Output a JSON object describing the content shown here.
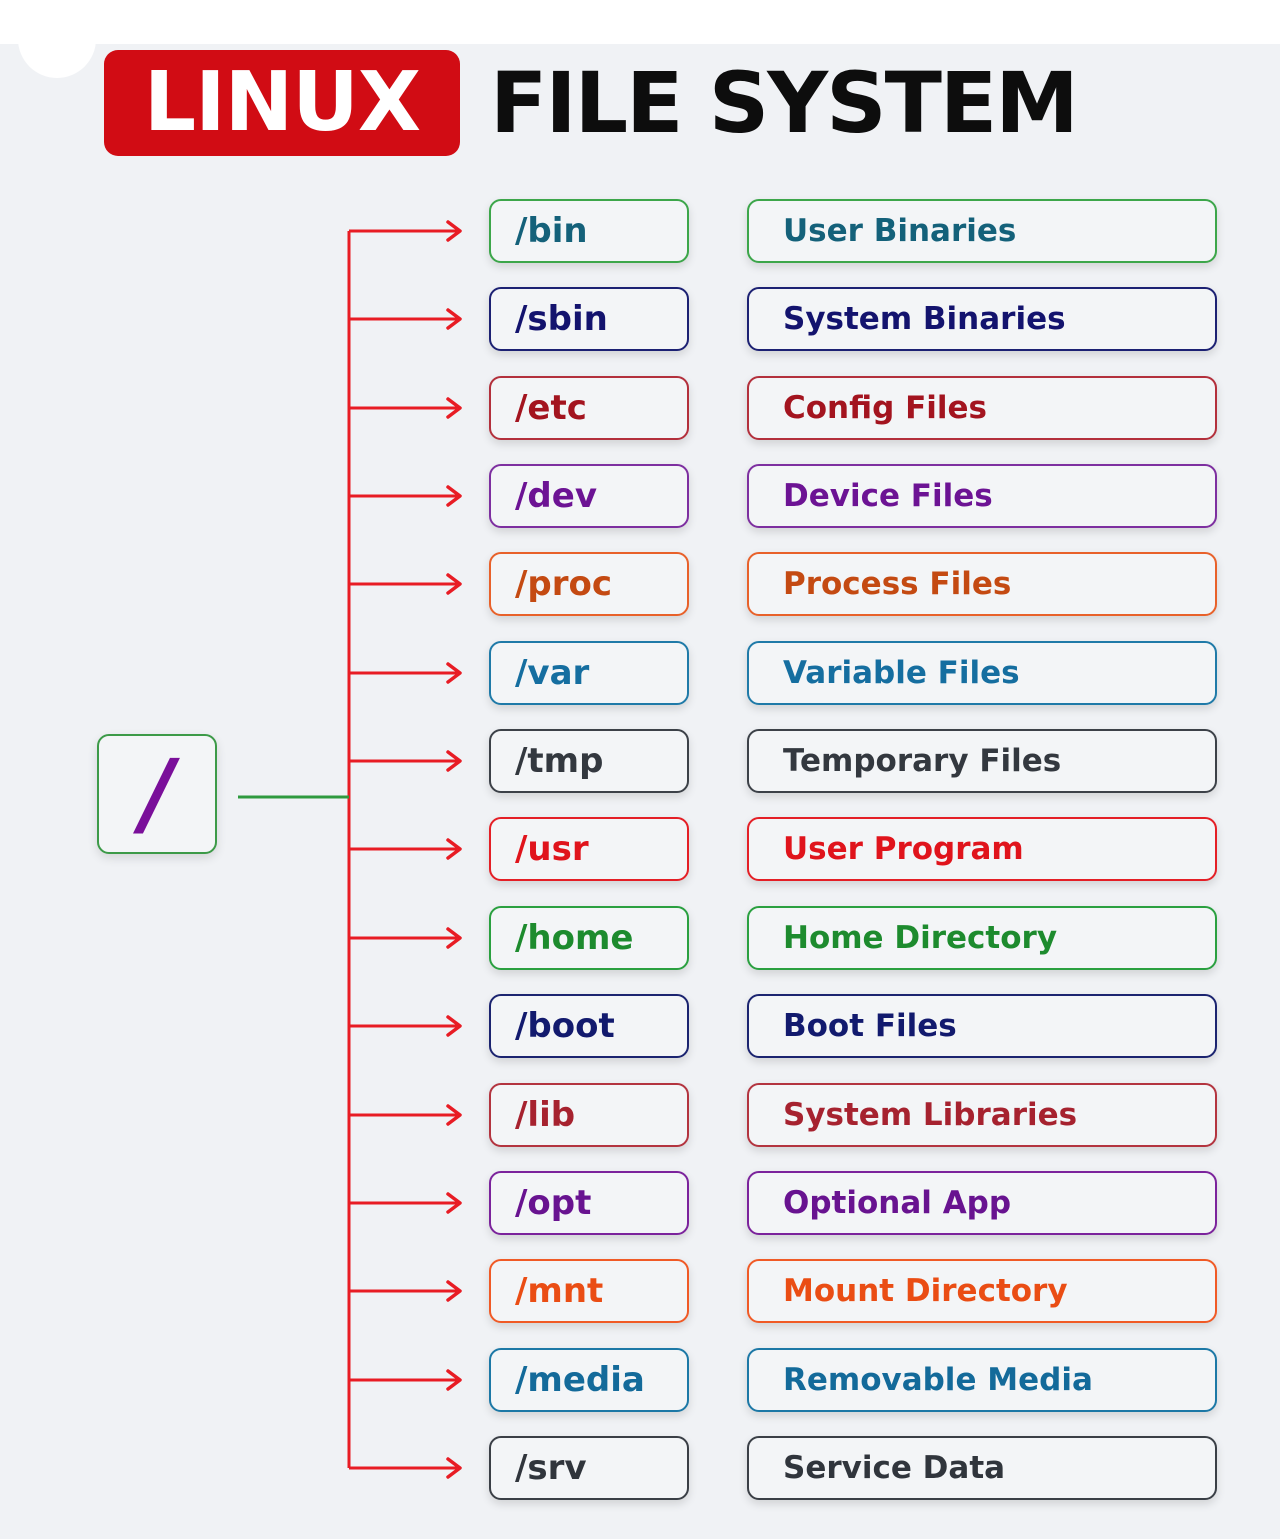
{
  "title": {
    "highlight": "LINUX",
    "rest": "FILE SYSTEM"
  },
  "root": {
    "label": "/"
  },
  "colors": {
    "title_badge": "#d10c14",
    "arrows": "#e81c24",
    "root_connector": "#2e9a3e",
    "root_label": "#7a0f9a"
  },
  "entries": [
    {
      "dir": "/bin",
      "desc": "User Binaries",
      "border": "#3ca64a",
      "text": "#14617a"
    },
    {
      "dir": "/sbin",
      "desc": "System Binaries",
      "border": "#1c2173",
      "text": "#13136e"
    },
    {
      "dir": "/etc",
      "desc": "Config Files",
      "border": "#b3303c",
      "text": "#a3141f"
    },
    {
      "dir": "/dev",
      "desc": "Device Files",
      "border": "#7d2fa0",
      "text": "#6c1394"
    },
    {
      "dir": "/proc",
      "desc": "Process Files",
      "border": "#e8612a",
      "text": "#c44a12"
    },
    {
      "dir": "/var",
      "desc": "Variable Files",
      "border": "#1f7aa8",
      "text": "#156ea0"
    },
    {
      "dir": "/tmp",
      "desc": "Temporary Files",
      "border": "#3c4148",
      "text": "#33383f"
    },
    {
      "dir": "/usr",
      "desc": "User Program",
      "border": "#e41f26",
      "text": "#e0141c"
    },
    {
      "dir": "/home",
      "desc": "Home Directory",
      "border": "#2aa040",
      "text": "#1d8b2e"
    },
    {
      "dir": "/boot",
      "desc": "Boot Files",
      "border": "#1b2470",
      "text": "#121a6e"
    },
    {
      "dir": "/lib",
      "desc": "System Libraries",
      "border": "#b3343f",
      "text": "#a6222f"
    },
    {
      "dir": "/opt",
      "desc": "Optional App",
      "border": "#7b239c",
      "text": "#681390"
    },
    {
      "dir": "/mnt",
      "desc": "Mount Directory",
      "border": "#f05a26",
      "text": "#ea4d14"
    },
    {
      "dir": "/media",
      "desc": "Removable Media",
      "border": "#1c78a6",
      "text": "#136a9a"
    },
    {
      "dir": "/srv",
      "desc": "Service Data",
      "border": "#3a3f46",
      "text": "#30353c"
    }
  ]
}
